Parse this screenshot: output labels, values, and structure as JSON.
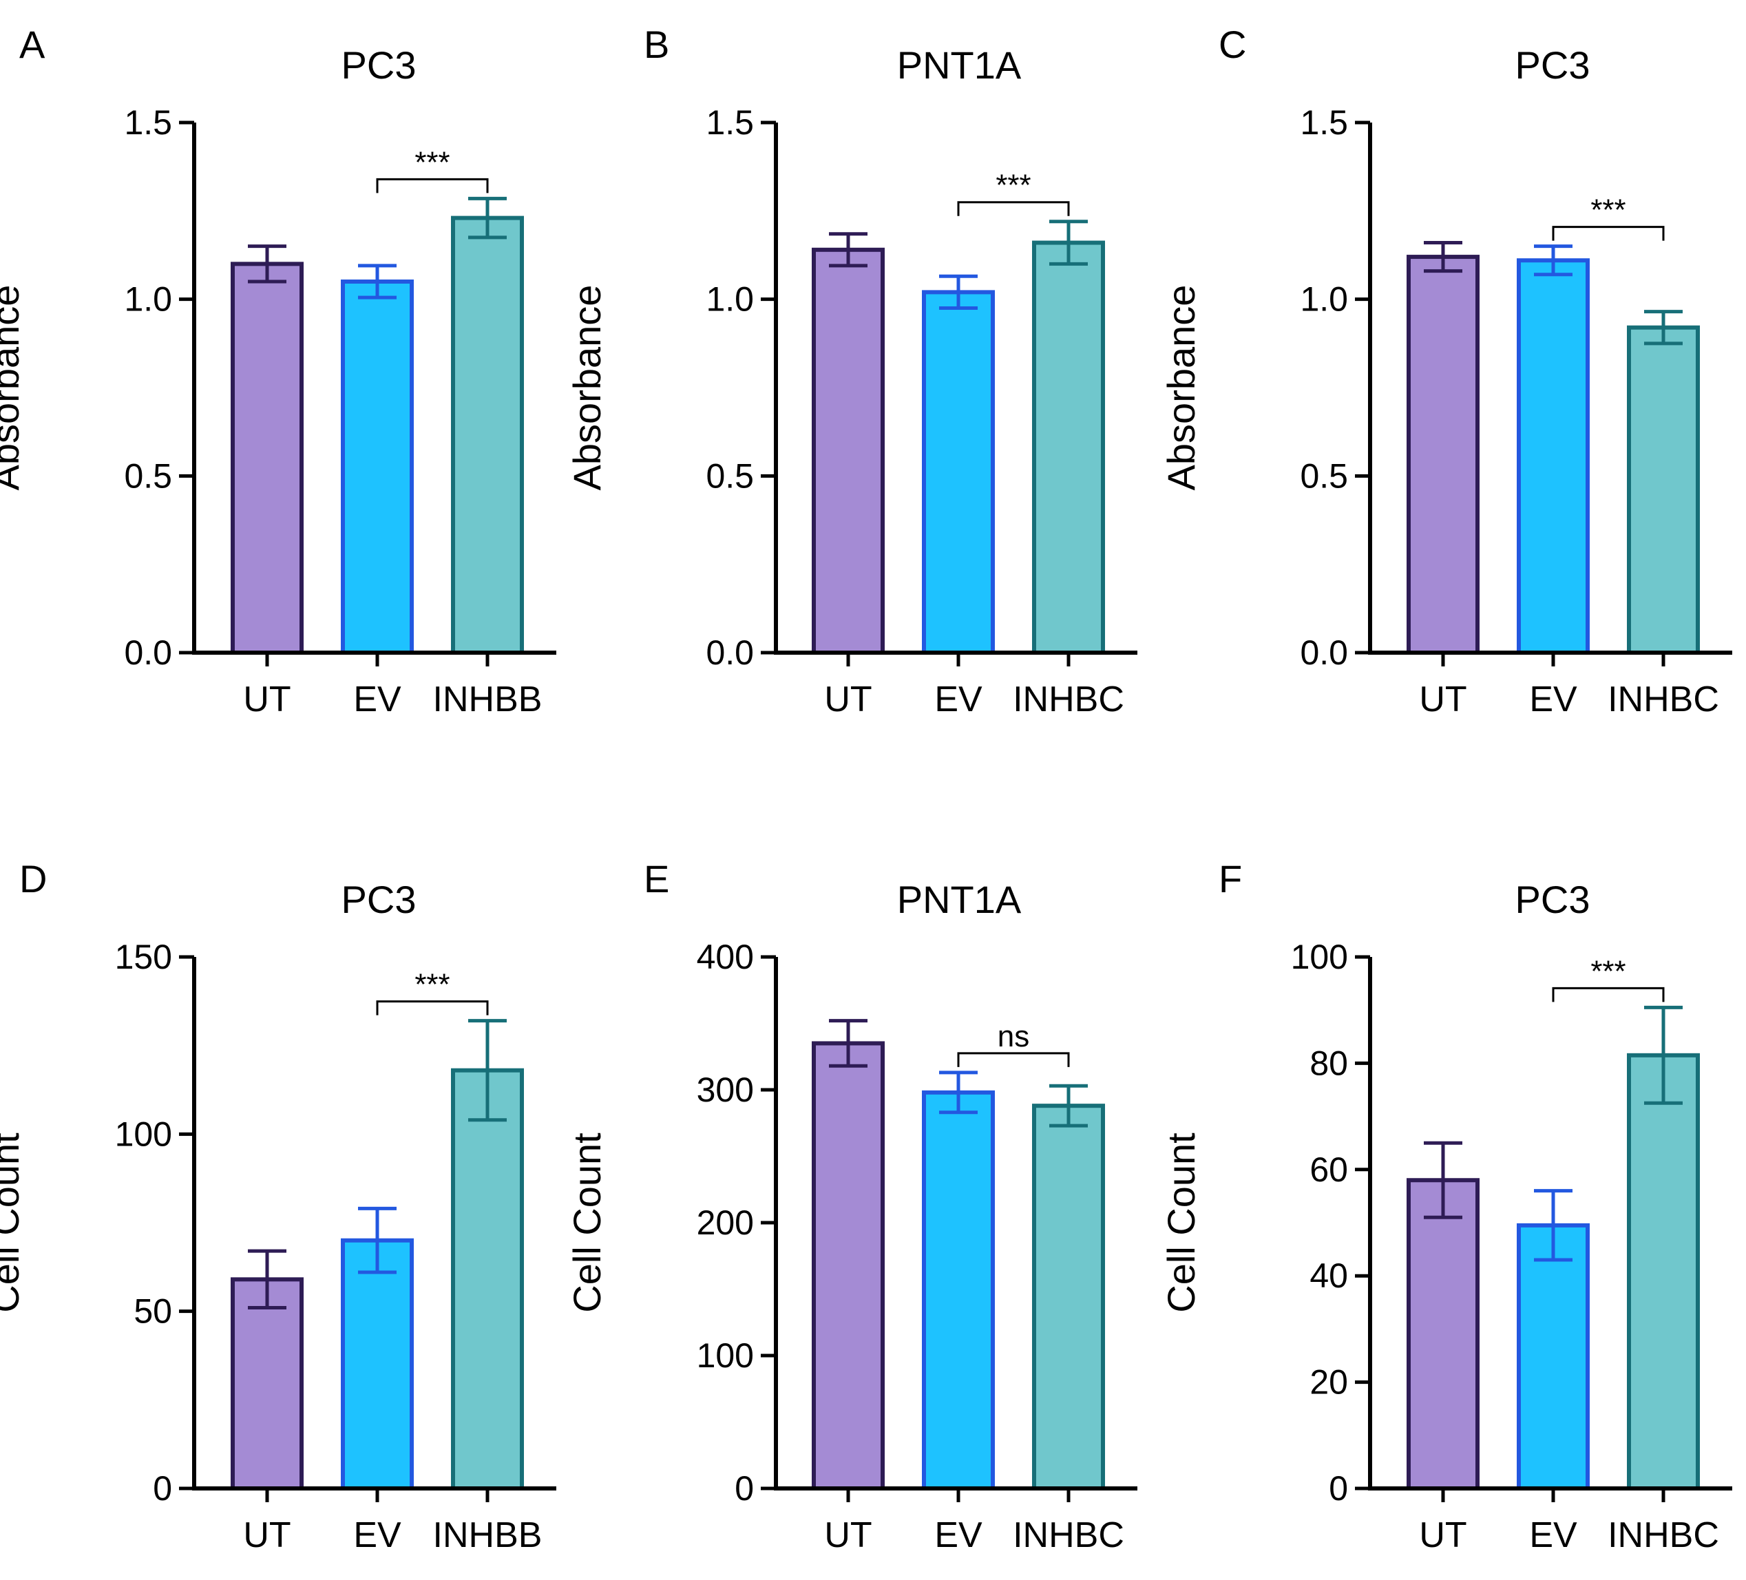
{
  "figure": {
    "description_role": "six-panel bar chart figure"
  },
  "chart_data": [
    {
      "panel": "A",
      "type": "bar",
      "title": "PC3",
      "ylabel": "Absorbance",
      "xlabel": "",
      "ylim": [
        0,
        1.5
      ],
      "yticks": [
        "0.0",
        "0.5",
        "1.0",
        "1.5"
      ],
      "ytick_values": [
        0,
        0.5,
        1.0,
        1.5
      ],
      "categories": [
        "UT",
        "EV",
        "INHBB"
      ],
      "values": [
        1.1,
        1.05,
        1.23
      ],
      "errors": [
        0.05,
        0.045,
        0.055
      ],
      "significance": {
        "from": 1,
        "to": 2,
        "label": "***"
      }
    },
    {
      "panel": "B",
      "type": "bar",
      "title": "PNT1A",
      "ylabel": "Absorbance",
      "xlabel": "",
      "ylim": [
        0,
        1.5
      ],
      "yticks": [
        "0.0",
        "0.5",
        "1.0",
        "1.5"
      ],
      "ytick_values": [
        0,
        0.5,
        1.0,
        1.5
      ],
      "categories": [
        "UT",
        "EV",
        "INHBC"
      ],
      "values": [
        1.14,
        1.02,
        1.16
      ],
      "errors": [
        0.045,
        0.045,
        0.06
      ],
      "significance": {
        "from": 1,
        "to": 2,
        "label": "***"
      }
    },
    {
      "panel": "C",
      "type": "bar",
      "title": "PC3",
      "ylabel": "Absorbance",
      "xlabel": "",
      "ylim": [
        0,
        1.5
      ],
      "yticks": [
        "0.0",
        "0.5",
        "1.0",
        "1.5"
      ],
      "ytick_values": [
        0,
        0.5,
        1.0,
        1.5
      ],
      "categories": [
        "UT",
        "EV",
        "INHBC"
      ],
      "values": [
        1.12,
        1.11,
        0.92
      ],
      "errors": [
        0.04,
        0.04,
        0.045
      ],
      "significance": {
        "from": 1,
        "to": 2,
        "label": "***"
      }
    },
    {
      "panel": "D",
      "type": "bar",
      "title": "PC3",
      "ylabel": "Cell Count",
      "xlabel": "",
      "ylim": [
        0,
        150
      ],
      "yticks": [
        "0",
        "50",
        "100",
        "150"
      ],
      "ytick_values": [
        0,
        50,
        100,
        150
      ],
      "categories": [
        "UT",
        "EV",
        "INHBB"
      ],
      "values": [
        59,
        70,
        118
      ],
      "errors": [
        8,
        9,
        14
      ],
      "significance": {
        "from": 1,
        "to": 2,
        "label": "***"
      }
    },
    {
      "panel": "E",
      "type": "bar",
      "title": "PNT1A",
      "ylabel": "Cell Count",
      "xlabel": "",
      "ylim": [
        0,
        400
      ],
      "yticks": [
        "0",
        "100",
        "200",
        "300",
        "400"
      ],
      "ytick_values": [
        0,
        100,
        200,
        300,
        400
      ],
      "categories": [
        "UT",
        "EV",
        "INHBC"
      ],
      "values": [
        335,
        298,
        288
      ],
      "errors": [
        17,
        15,
        15
      ],
      "significance": {
        "from": 1,
        "to": 2,
        "label": "ns"
      }
    },
    {
      "panel": "F",
      "type": "bar",
      "title": "PC3",
      "ylabel": "Cell Count",
      "xlabel": "",
      "ylim": [
        0,
        100
      ],
      "yticks": [
        "0",
        "20",
        "40",
        "60",
        "80",
        "100"
      ],
      "ytick_values": [
        0,
        20,
        40,
        60,
        80,
        100
      ],
      "categories": [
        "UT",
        "EV",
        "INHBC"
      ],
      "values": [
        58,
        49.5,
        81.5
      ],
      "errors": [
        7,
        6.5,
        9
      ],
      "significance": {
        "from": 1,
        "to": 2,
        "label": "***"
      }
    }
  ],
  "colors": {
    "fills": [
      "#a48bd4",
      "#1ec2ff",
      "#70c7cc"
    ],
    "strokes": [
      "#2e1c55",
      "#2358e0",
      "#176f78"
    ]
  }
}
